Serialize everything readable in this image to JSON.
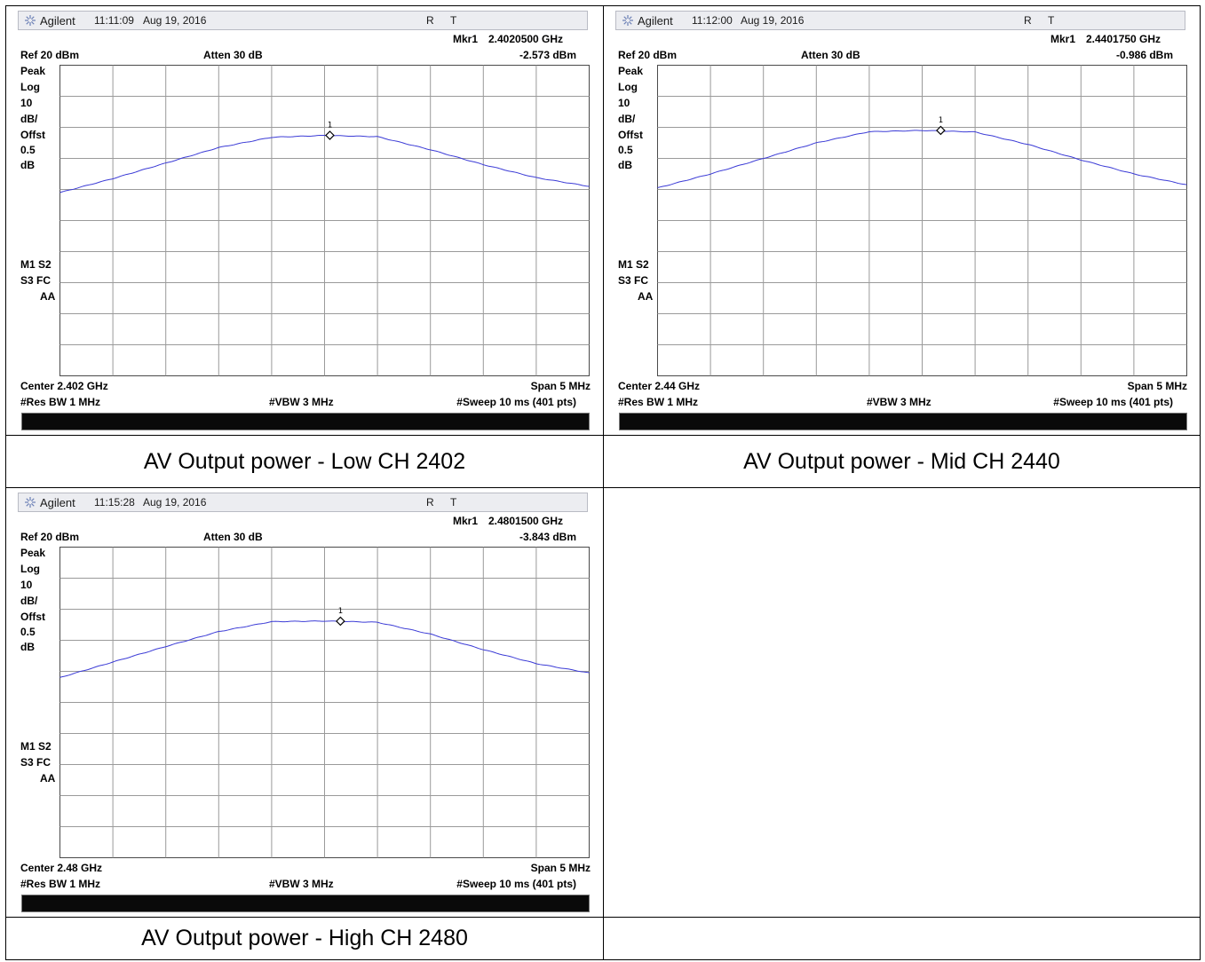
{
  "captions": {
    "low": "AV Output power - Low CH 2402",
    "mid": "AV Output power -  Mid CH 2440",
    "high": "AV Output power -  High CH 2480"
  },
  "chart_data": [
    {
      "type": "line",
      "brand": "Agilent",
      "time": "11:11:09",
      "date": "Aug 19, 2016",
      "mode_r": "R",
      "mode_t": "T",
      "marker_label": "Mkr1",
      "marker_freq": "2.4020500 GHz",
      "marker_level": "-2.573 dBm",
      "marker_num": "1",
      "marker": {
        "x": 2.40205,
        "y": -2.573
      },
      "ref": "Ref 20 dBm",
      "atten": "Atten 30 dB",
      "left_labels": [
        "Peak",
        "Log",
        "10",
        "dB/",
        "Offst",
        "0.5",
        "dB"
      ],
      "status_labels": [
        "M1  S2",
        "S3  FC",
        "AA"
      ],
      "center": "Center 2.402 GHz",
      "span": "Span 5 MHz",
      "rbw": "#Res BW 1 MHz",
      "vbw": "#VBW 3 MHz",
      "sweep": "#Sweep 10 ms (401 pts)",
      "ylim": [
        -80,
        20
      ],
      "xlim": [
        2.3995,
        2.4045
      ],
      "series": [
        {
          "x": [
            2.3995,
            2.4,
            2.4005,
            2.401,
            2.4015,
            2.402,
            2.4025,
            2.403,
            2.4035,
            2.404,
            2.4045
          ],
          "y": [
            -21.0,
            -16.5,
            -11.5,
            -6.5,
            -3.2,
            -2.6,
            -3.0,
            -7.2,
            -12.0,
            -16.2,
            -19.0
          ]
        }
      ]
    },
    {
      "type": "line",
      "brand": "Agilent",
      "time": "11:12:00",
      "date": "Aug 19, 2016",
      "mode_r": "R",
      "mode_t": "T",
      "marker_label": "Mkr1",
      "marker_freq": "2.4401750 GHz",
      "marker_level": "-0.986 dBm",
      "marker_num": "1",
      "marker": {
        "x": 2.440175,
        "y": -0.986
      },
      "ref": "Ref 20 dBm",
      "atten": "Atten 30 dB",
      "left_labels": [
        "Peak",
        "Log",
        "10",
        "dB/",
        "Offst",
        "0.5",
        "dB"
      ],
      "status_labels": [
        "M1  S2",
        "S3  FC",
        "AA"
      ],
      "center": "Center 2.44 GHz",
      "span": "Span 5 MHz",
      "rbw": "#Res BW 1 MHz",
      "vbw": "#VBW 3 MHz",
      "sweep": "#Sweep 10 ms (401 pts)",
      "ylim": [
        -80,
        20
      ],
      "xlim": [
        2.4375,
        2.4425
      ],
      "series": [
        {
          "x": [
            2.4375,
            2.438,
            2.4385,
            2.439,
            2.4395,
            2.44,
            2.4405,
            2.441,
            2.4415,
            2.442,
            2.4425
          ],
          "y": [
            -19.5,
            -15.0,
            -10.0,
            -5.0,
            -1.4,
            -1.0,
            -1.5,
            -5.5,
            -10.5,
            -15.0,
            -18.5
          ]
        }
      ]
    },
    {
      "type": "line",
      "brand": "Agilent",
      "time": "11:15:28",
      "date": "Aug 19, 2016",
      "mode_r": "R",
      "mode_t": "T",
      "marker_label": "Mkr1",
      "marker_freq": "2.4801500 GHz",
      "marker_level": "-3.843 dBm",
      "marker_num": "1",
      "marker": {
        "x": 2.48015,
        "y": -3.843
      },
      "ref": "Ref 20 dBm",
      "atten": "Atten 30 dB",
      "left_labels": [
        "Peak",
        "Log",
        "10",
        "dB/",
        "Offst",
        "0.5",
        "dB"
      ],
      "status_labels": [
        "M1  S2",
        "S3  FC",
        "AA"
      ],
      "center": "Center 2.48 GHz",
      "span": "Span 5 MHz",
      "rbw": "#Res BW 1 MHz",
      "vbw": "#VBW 3 MHz",
      "sweep": "#Sweep 10 ms (401 pts)",
      "ylim": [
        -80,
        20
      ],
      "xlim": [
        2.4775,
        2.4825
      ],
      "series": [
        {
          "x": [
            2.4775,
            2.478,
            2.4785,
            2.479,
            2.4795,
            2.48,
            2.4805,
            2.481,
            2.4815,
            2.482,
            2.4825
          ],
          "y": [
            -22.0,
            -17.0,
            -12.0,
            -7.2,
            -4.0,
            -3.8,
            -4.2,
            -8.0,
            -13.0,
            -17.5,
            -20.5
          ]
        }
      ]
    }
  ]
}
